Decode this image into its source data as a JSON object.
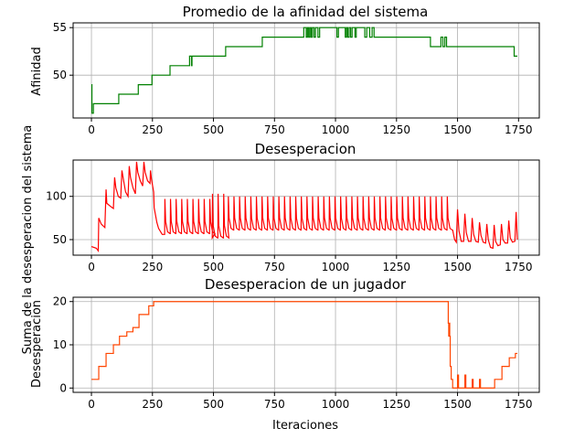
{
  "chart_data": [
    {
      "type": "line",
      "title": "Promedio de la afinidad del sistema",
      "xlabel": "",
      "ylabel": "Afinidad",
      "xlim": [
        -75,
        1835
      ],
      "ylim": [
        45.5,
        55.5
      ],
      "xticks": [
        0,
        250,
        500,
        750,
        1000,
        1250,
        1500,
        1750
      ],
      "yticks": [
        50,
        55
      ],
      "grid": true,
      "color": "#008000",
      "series": [
        {
          "step": true,
          "points": [
            [
              0,
              49
            ],
            [
              2,
              46
            ],
            [
              8,
              47
            ],
            [
              110,
              47
            ],
            [
              112,
              48
            ],
            [
              190,
              48
            ],
            [
              192,
              49
            ],
            [
              246,
              49
            ],
            [
              248,
              50
            ],
            [
              320,
              50
            ],
            [
              322,
              51
            ],
            [
              400,
              51
            ],
            [
              402,
              52
            ],
            [
              410,
              51
            ],
            [
              412,
              52
            ],
            [
              548,
              52
            ],
            [
              550,
              53
            ],
            [
              698,
              53
            ],
            [
              700,
              54
            ],
            [
              868,
              54
            ],
            [
              870,
              55
            ],
            [
              880,
              54
            ],
            [
              885,
              55
            ],
            [
              890,
              54
            ],
            [
              895,
              55
            ],
            [
              900,
              54
            ],
            [
              905,
              55
            ],
            [
              912,
              54
            ],
            [
              918,
              55
            ],
            [
              928,
              54
            ],
            [
              935,
              55
            ],
            [
              1000,
              55
            ],
            [
              1006,
              54
            ],
            [
              1012,
              55
            ],
            [
              1035,
              55
            ],
            [
              1040,
              54
            ],
            [
              1045,
              55
            ],
            [
              1050,
              54
            ],
            [
              1056,
              55
            ],
            [
              1062,
              54
            ],
            [
              1068,
              55
            ],
            [
              1080,
              54
            ],
            [
              1085,
              55
            ],
            [
              1118,
              55
            ],
            [
              1120,
              54
            ],
            [
              1128,
              55
            ],
            [
              1140,
              54
            ],
            [
              1150,
              55
            ],
            [
              1158,
              54
            ],
            [
              1198,
              54
            ],
            [
              1387,
              54
            ],
            [
              1389,
              53
            ],
            [
              1430,
              53
            ],
            [
              1432,
              54
            ],
            [
              1440,
              53
            ],
            [
              1448,
              54
            ],
            [
              1455,
              53
            ],
            [
              1730,
              53
            ],
            [
              1732,
              52
            ],
            [
              1745,
              52
            ]
          ]
        }
      ]
    },
    {
      "type": "line",
      "title": "Desesperacion",
      "xlabel": "",
      "ylabel": "Suma de la desesperacion del sistema",
      "xlim": [
        -75,
        1835
      ],
      "ylim": [
        32,
        142
      ],
      "xticks": [
        0,
        250,
        500,
        750,
        1000,
        1250,
        1500,
        1750
      ],
      "yticks": [
        50,
        100
      ],
      "grid": true,
      "color": "#ff0000",
      "series": [
        {
          "step": false,
          "points": [
            [
              0,
              42
            ],
            [
              20,
              40
            ],
            [
              28,
              37
            ],
            [
              30,
              75
            ],
            [
              40,
              68
            ],
            [
              55,
              64
            ],
            [
              60,
              108
            ],
            [
              63,
              92
            ],
            [
              80,
              88
            ],
            [
              90,
              86
            ],
            [
              95,
              122
            ],
            [
              100,
              110
            ],
            [
              110,
              100
            ],
            [
              120,
              98
            ],
            [
              125,
              130
            ],
            [
              132,
              118
            ],
            [
              140,
              105
            ],
            [
              150,
              100
            ],
            [
              155,
              135
            ],
            [
              160,
              122
            ],
            [
              170,
              110
            ],
            [
              180,
              103
            ],
            [
              185,
              140
            ],
            [
              190,
              128
            ],
            [
              200,
              118
            ],
            [
              210,
              112
            ],
            [
              215,
              140
            ],
            [
              220,
              128
            ],
            [
              230,
              118
            ],
            [
              240,
              115
            ],
            [
              242,
              130
            ],
            [
              246,
              120
            ],
            [
              252,
              110
            ],
            [
              255,
              105
            ],
            [
              257,
              87
            ],
            [
              268,
              70
            ],
            [
              275,
              63
            ],
            [
              290,
              56
            ],
            [
              300,
              56
            ]
          ]
        }
      ],
      "spikes": {
        "from": 300,
        "to": 1480,
        "period": 23,
        "baseline": 57,
        "peak": 97,
        "segments": [
          {
            "from": 300,
            "to": 495,
            "base": 57,
            "peak": 97
          },
          {
            "from": 495,
            "to": 560,
            "base": 52,
            "peak": 103
          },
          {
            "from": 560,
            "to": 1480,
            "base": 61,
            "peak": 100
          }
        ]
      },
      "tail": [
        [
          1480,
          61
        ],
        [
          1488,
          50
        ],
        [
          1495,
          47
        ],
        [
          1500,
          85
        ],
        [
          1506,
          60
        ],
        [
          1515,
          48
        ],
        [
          1525,
          48
        ],
        [
          1530,
          80
        ],
        [
          1536,
          58
        ],
        [
          1545,
          48
        ],
        [
          1555,
          48
        ],
        [
          1560,
          75
        ],
        [
          1566,
          56
        ],
        [
          1575,
          48
        ],
        [
          1585,
          47
        ],
        [
          1590,
          70
        ],
        [
          1596,
          55
        ],
        [
          1605,
          47
        ],
        [
          1615,
          46
        ],
        [
          1620,
          68
        ],
        [
          1626,
          50
        ],
        [
          1635,
          41
        ],
        [
          1645,
          40
        ],
        [
          1650,
          67
        ],
        [
          1656,
          48
        ],
        [
          1665,
          43
        ],
        [
          1675,
          44
        ],
        [
          1680,
          68
        ],
        [
          1686,
          50
        ],
        [
          1695,
          46
        ],
        [
          1705,
          46
        ],
        [
          1710,
          72
        ],
        [
          1716,
          52
        ],
        [
          1725,
          47
        ],
        [
          1735,
          48
        ],
        [
          1740,
          82
        ],
        [
          1745,
          50
        ]
      ]
    },
    {
      "type": "line",
      "title": "Desesperacion de un jugador",
      "xlabel": "Iteraciones",
      "ylabel": "Desesperacion",
      "xlim": [
        -75,
        1835
      ],
      "ylim": [
        -1,
        21
      ],
      "xticks": [
        0,
        250,
        500,
        750,
        1000,
        1250,
        1500,
        1750
      ],
      "yticks": [
        0,
        10,
        20
      ],
      "grid": true,
      "color": "#ff4500",
      "series": [
        {
          "step": true,
          "points": [
            [
              0,
              2
            ],
            [
              28,
              2
            ],
            [
              30,
              5
            ],
            [
              55,
              5
            ],
            [
              60,
              8
            ],
            [
              85,
              8
            ],
            [
              90,
              10
            ],
            [
              110,
              10
            ],
            [
              115,
              12
            ],
            [
              140,
              12
            ],
            [
              145,
              13
            ],
            [
              165,
              13
            ],
            [
              170,
              14
            ],
            [
              190,
              14
            ],
            [
              195,
              17
            ],
            [
              230,
              17
            ],
            [
              235,
              19
            ],
            [
              250,
              19
            ],
            [
              255,
              20
            ],
            [
              1460,
              20
            ],
            [
              1462,
              15
            ],
            [
              1464,
              12
            ],
            [
              1466,
              15
            ],
            [
              1468,
              12
            ],
            [
              1470,
              5
            ],
            [
              1474,
              2
            ],
            [
              1480,
              0
            ],
            [
              1498,
              0
            ],
            [
              1500,
              3
            ],
            [
              1504,
              0
            ],
            [
              1528,
              0
            ],
            [
              1530,
              3
            ],
            [
              1534,
              0
            ],
            [
              1558,
              0
            ],
            [
              1560,
              2
            ],
            [
              1564,
              0
            ],
            [
              1588,
              0
            ],
            [
              1590,
              2
            ],
            [
              1594,
              0
            ],
            [
              1650,
              0
            ],
            [
              1652,
              2
            ],
            [
              1680,
              2
            ],
            [
              1682,
              5
            ],
            [
              1710,
              5
            ],
            [
              1712,
              7
            ],
            [
              1735,
              7
            ],
            [
              1737,
              8
            ],
            [
              1745,
              8
            ]
          ]
        }
      ]
    }
  ]
}
